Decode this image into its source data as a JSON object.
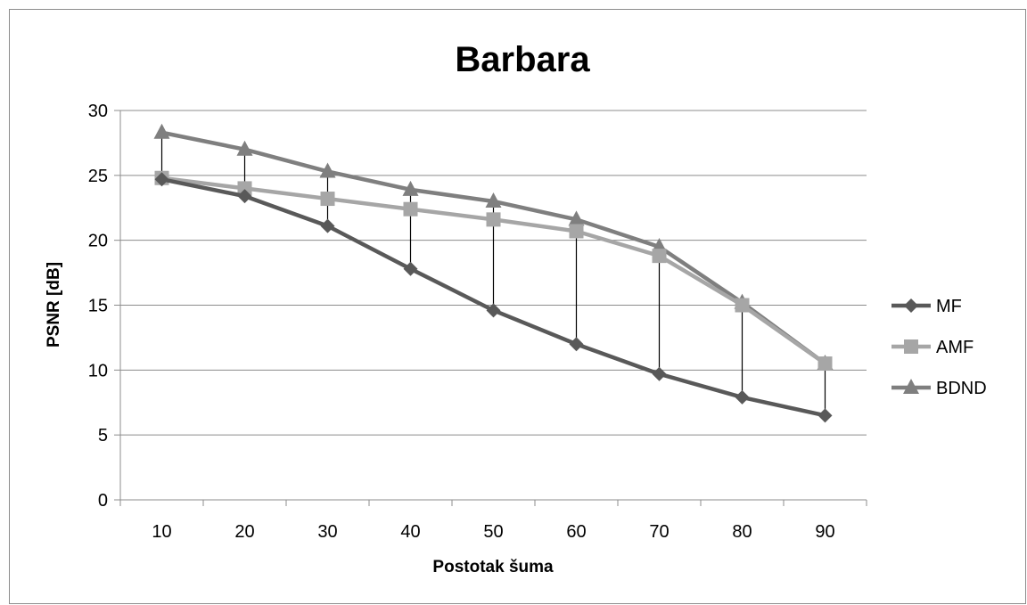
{
  "chart_data": {
    "type": "line",
    "title": "Barbara",
    "xlabel": "Postotak šuma",
    "ylabel": "PSNR [dB]",
    "x": [
      10,
      20,
      30,
      40,
      50,
      60,
      70,
      80,
      90
    ],
    "ylim": [
      0,
      30
    ],
    "yticks": [
      0,
      5,
      10,
      15,
      20,
      25,
      30
    ],
    "grid": "horizontal",
    "legend": "right",
    "drop_lines": true,
    "series": [
      {
        "name": "MF",
        "marker": "diamond",
        "color": "#595959",
        "values": [
          24.7,
          23.4,
          21.1,
          17.8,
          14.6,
          12.0,
          9.7,
          7.9,
          6.5
        ]
      },
      {
        "name": "AMF",
        "marker": "square",
        "color": "#a6a6a6",
        "values": [
          24.8,
          24.0,
          23.2,
          22.4,
          21.6,
          20.7,
          18.8,
          15.0,
          10.5
        ]
      },
      {
        "name": "BDND",
        "marker": "triangle",
        "color": "#7f7f7f",
        "values": [
          28.3,
          27.0,
          25.3,
          23.9,
          23.0,
          21.6,
          19.5,
          15.2,
          10.5
        ]
      }
    ]
  }
}
